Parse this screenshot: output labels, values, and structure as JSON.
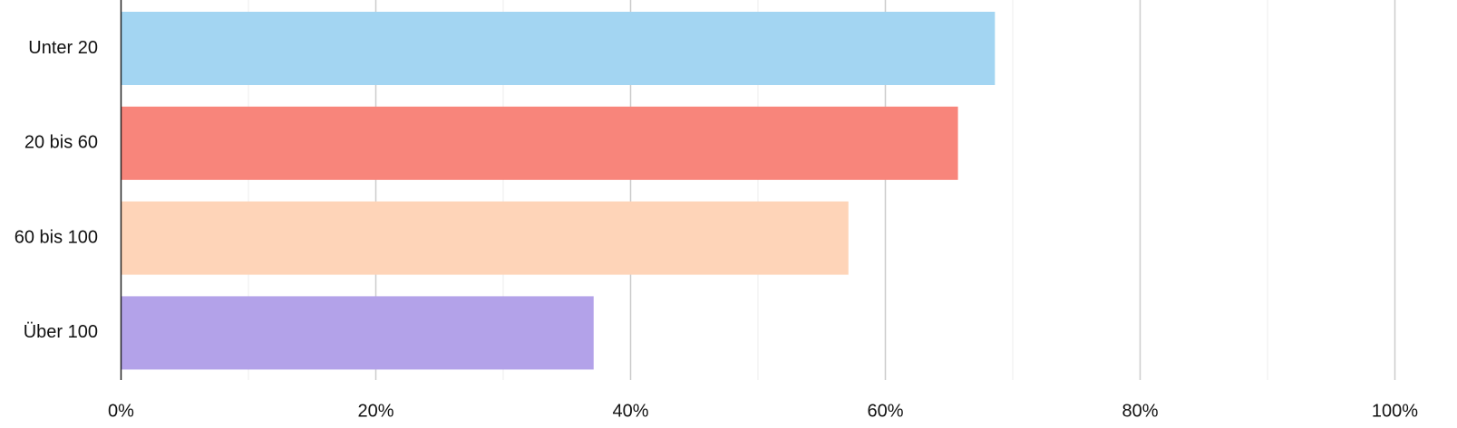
{
  "chart_data": {
    "type": "bar",
    "orientation": "horizontal",
    "categories": [
      "Unter 20",
      "20 bis 60",
      "60 bis 100",
      "Über 100"
    ],
    "values": [
      68.6,
      65.7,
      57.1,
      37.1
    ],
    "colors": [
      "#a3d5f2",
      "#f8857b",
      "#fed4b8",
      "#b3a2e9"
    ],
    "x_ticks": [
      "0%",
      "20%",
      "40%",
      "60%",
      "80%",
      "100%"
    ],
    "xlim": [
      0,
      100
    ],
    "x_unit": "%",
    "grid": true,
    "title": "",
    "xlabel": "",
    "ylabel": ""
  }
}
